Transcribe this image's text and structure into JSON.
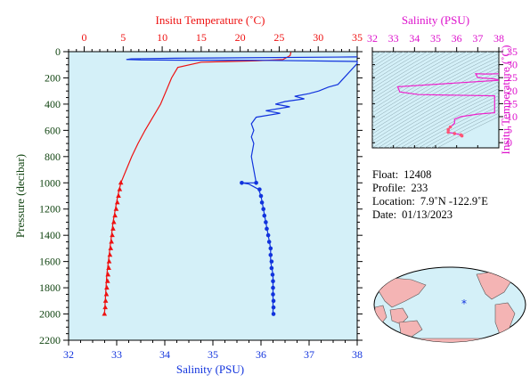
{
  "chart_data": [
    {
      "type": "line",
      "title": "",
      "top_axis_label": "Insitu Temperature (˚C)",
      "top_axis_range": [
        -2,
        35
      ],
      "top_axis_ticks": [
        "0",
        "5",
        "10",
        "15",
        "20",
        "25",
        "30",
        "35"
      ],
      "xlabel": "Salinity (PSU)",
      "x_range": [
        32,
        38
      ],
      "x_ticks": [
        "32",
        "33",
        "34",
        "35",
        "36",
        "37",
        "38"
      ],
      "ylabel": "Pressure (decibar)",
      "y_range": [
        0,
        2200
      ],
      "y_inverted": true,
      "y_ticks": [
        "0",
        "200",
        "400",
        "600",
        "800",
        "1000",
        "1200",
        "1400",
        "1600",
        "1800",
        "2000",
        "2200"
      ],
      "series": [
        {
          "measure": "temperature",
          "color": "#ee1111",
          "marker": "triangle",
          "points": [
            [
              26.5,
              5
            ],
            [
              26.4,
              30
            ],
            [
              25.5,
              60
            ],
            [
              22,
              70
            ],
            [
              15,
              80
            ],
            [
              12,
              120
            ],
            [
              11.2,
              200
            ],
            [
              10.5,
              300
            ],
            [
              9.8,
              400
            ],
            [
              8.8,
              500
            ],
            [
              7.8,
              600
            ],
            [
              6.9,
              700
            ],
            [
              6.1,
              800
            ],
            [
              5.4,
              900
            ],
            [
              4.7,
              1000
            ],
            [
              4.3,
              1100
            ],
            [
              4.0,
              1200
            ],
            [
              3.7,
              1300
            ],
            [
              3.5,
              1400
            ],
            [
              3.3,
              1500
            ],
            [
              3.1,
              1600
            ],
            [
              2.9,
              1700
            ],
            [
              2.8,
              1800
            ],
            [
              2.7,
              1900
            ],
            [
              2.6,
              2000
            ]
          ],
          "marker_points": [
            [
              4.7,
              1000
            ],
            [
              4.55,
              1050
            ],
            [
              4.4,
              1100
            ],
            [
              4.25,
              1150
            ],
            [
              4.1,
              1200
            ],
            [
              3.95,
              1250
            ],
            [
              3.8,
              1300
            ],
            [
              3.7,
              1350
            ],
            [
              3.6,
              1400
            ],
            [
              3.5,
              1450
            ],
            [
              3.4,
              1500
            ],
            [
              3.3,
              1550
            ],
            [
              3.2,
              1600
            ],
            [
              3.15,
              1650
            ],
            [
              3.05,
              1700
            ],
            [
              3.0,
              1750
            ],
            [
              2.9,
              1800
            ],
            [
              2.85,
              1850
            ],
            [
              2.75,
              1900
            ],
            [
              2.7,
              1950
            ],
            [
              2.6,
              2000
            ]
          ]
        },
        {
          "measure": "salinity",
          "color": "#1133dd",
          "marker": "circle",
          "points": [
            [
              38.0,
              40
            ],
            [
              34.2,
              50
            ],
            [
              33.3,
              55
            ],
            [
              33.2,
              60
            ],
            [
              33.5,
              63
            ],
            [
              34.5,
              65
            ],
            [
              36.0,
              66
            ],
            [
              38.0,
              75
            ],
            [
              38.0,
              90
            ],
            [
              37.6,
              250
            ],
            [
              37.4,
              270
            ],
            [
              37.2,
              300
            ],
            [
              37.0,
              320
            ],
            [
              36.7,
              340
            ],
            [
              36.9,
              360
            ],
            [
              36.5,
              380
            ],
            [
              36.3,
              400
            ],
            [
              36.6,
              420
            ],
            [
              36.1,
              450
            ],
            [
              36.4,
              470
            ],
            [
              35.9,
              500
            ],
            [
              35.8,
              550
            ],
            [
              35.85,
              600
            ],
            [
              35.8,
              650
            ],
            [
              35.85,
              700
            ],
            [
              35.8,
              800
            ],
            [
              35.85,
              900
            ],
            [
              35.9,
              1000
            ],
            [
              35.6,
              1000
            ],
            [
              35.75,
              1010
            ],
            [
              35.95,
              1050
            ],
            [
              36.0,
              1100
            ],
            [
              36.05,
              1200
            ],
            [
              36.1,
              1300
            ],
            [
              36.15,
              1400
            ],
            [
              36.2,
              1500
            ],
            [
              36.2,
              1600
            ],
            [
              36.25,
              1700
            ],
            [
              36.25,
              1800
            ],
            [
              36.25,
              1900
            ],
            [
              36.25,
              2000
            ]
          ],
          "marker_points": [
            [
              35.6,
              1000
            ],
            [
              35.9,
              1000
            ],
            [
              35.97,
              1050
            ],
            [
              36.0,
              1100
            ],
            [
              36.02,
              1150
            ],
            [
              36.05,
              1200
            ],
            [
              36.07,
              1250
            ],
            [
              36.1,
              1300
            ],
            [
              36.12,
              1350
            ],
            [
              36.15,
              1400
            ],
            [
              36.17,
              1450
            ],
            [
              36.2,
              1500
            ],
            [
              36.2,
              1550
            ],
            [
              36.22,
              1600
            ],
            [
              36.22,
              1650
            ],
            [
              36.24,
              1700
            ],
            [
              36.25,
              1750
            ],
            [
              36.25,
              1800
            ],
            [
              36.25,
              1850
            ],
            [
              36.26,
              1900
            ],
            [
              36.26,
              1950
            ],
            [
              36.26,
              2000
            ]
          ]
        }
      ]
    },
    {
      "type": "scatter",
      "title": "",
      "xlabel": "Salinity (PSU)",
      "x_range": [
        32,
        38
      ],
      "x_ticks": [
        "32",
        "33",
        "34",
        "35",
        "36",
        "37",
        "38"
      ],
      "ylabel": "Insitu Temperature (˚C)",
      "y_range": [
        -2,
        35
      ],
      "y_ticks": [
        "0",
        "5",
        "10",
        "15",
        "20",
        "25",
        "30",
        "35"
      ],
      "series": [
        {
          "color": "#ee22cc",
          "points": [
            [
              38.0,
              26.5
            ],
            [
              37.4,
              26.4
            ],
            [
              36.9,
              26.5
            ],
            [
              37.0,
              25.0
            ],
            [
              37.8,
              24.5
            ],
            [
              38.0,
              24.0
            ],
            [
              33.2,
              21.5
            ],
            [
              33.3,
              19.5
            ],
            [
              34.2,
              18.5
            ],
            [
              37.8,
              18.0
            ],
            [
              37.8,
              11.5
            ],
            [
              37.0,
              11.0
            ],
            [
              36.2,
              10.0
            ],
            [
              35.9,
              9.0
            ],
            [
              35.9,
              7.5
            ],
            [
              35.7,
              6.0
            ],
            [
              35.6,
              5.0
            ],
            [
              35.6,
              4.0
            ],
            [
              35.9,
              3.5
            ],
            [
              36.2,
              3.0
            ],
            [
              36.25,
              2.6
            ]
          ]
        }
      ]
    }
  ],
  "info": {
    "float_label": "Float:",
    "float_value": "12408",
    "profile_label": "Profile:",
    "profile_value": "233",
    "location_label": "Location:",
    "location_value": "7.9˚N  -122.9˚E",
    "date_label": "Date:",
    "date_value": "01/13/2023"
  },
  "map": {
    "marker_symbol": "*",
    "colors": {
      "ocean": "#d4f0f8",
      "land": "#f4b4b4",
      "marker": "#1133dd"
    }
  },
  "colors": {
    "plot_bg": "#d4f0f8",
    "temperature": "#ee1111",
    "salinity": "#1133dd",
    "ts_axis": "#dd11cc",
    "frame": "#000000"
  }
}
